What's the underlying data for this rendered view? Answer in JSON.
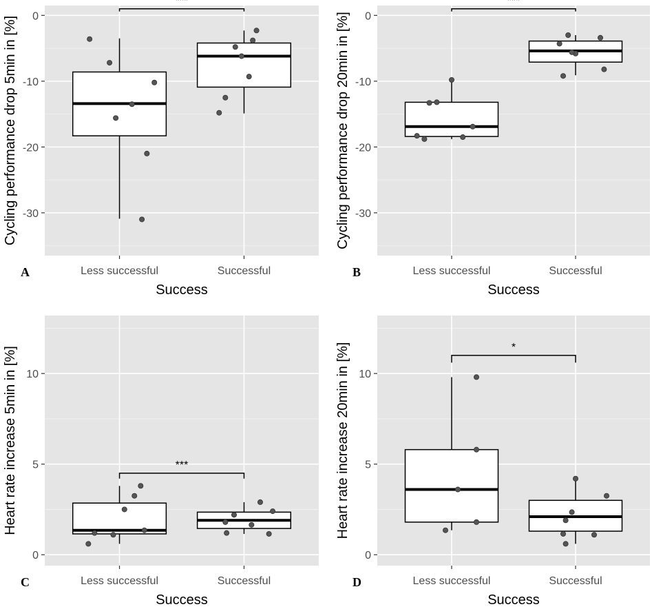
{
  "figure": {
    "colors": {
      "panel_background": "#e5e5e5",
      "grid": "#ffffff",
      "box_fill": "#ffffff",
      "point": "#555555"
    }
  },
  "chart_data": [
    {
      "type": "box",
      "panel": "A",
      "ylabel": "Cycling performance drop 5min in [%]",
      "xlabel": "Success",
      "categories": [
        "Less successful",
        "Successful"
      ],
      "ylim": [
        -36.5,
        1.5
      ],
      "yticks": [
        0,
        -10,
        -20,
        -30
      ],
      "ytick_labels": [
        "0",
        "-10",
        "-20",
        "-30"
      ],
      "boxes": [
        {
          "q1": -18.3,
          "median": -13.4,
          "q3": -8.6,
          "whisker_low": -30.9,
          "whisker_high": -3.5
        },
        {
          "q1": -10.9,
          "median": -6.2,
          "q3": -4.2,
          "whisker_low": -14.9,
          "whisker_high": -2.3
        }
      ],
      "points": [
        [
          [
            -0.24,
            -3.6
          ],
          [
            -0.08,
            -7.2
          ],
          [
            0.28,
            -10.2
          ],
          [
            0.1,
            -13.5
          ],
          [
            -0.03,
            -15.6
          ],
          [
            0.22,
            -21.0
          ],
          [
            0.18,
            -31.0
          ]
        ],
        [
          [
            0.1,
            -2.3
          ],
          [
            -0.07,
            -4.8
          ],
          [
            0.07,
            -3.8
          ],
          [
            -0.02,
            -6.2
          ],
          [
            -0.15,
            -12.5
          ],
          [
            0.04,
            -9.3
          ],
          [
            -0.2,
            -14.8
          ]
        ]
      ],
      "significance": {
        "label": "***",
        "y": 1.0,
        "drop": 0.4
      }
    },
    {
      "type": "box",
      "panel": "B",
      "ylabel": "Cycling performance drop 20min in [%]",
      "xlabel": "Success",
      "categories": [
        "Less successful",
        "Successful"
      ],
      "ylim": [
        -36.5,
        1.5
      ],
      "yticks": [
        0,
        -10,
        -20,
        -30
      ],
      "ytick_labels": [
        "0",
        "-10",
        "-20",
        "-30"
      ],
      "boxes": [
        {
          "q1": -18.4,
          "median": -16.9,
          "q3": -13.2,
          "whisker_low": -18.8,
          "whisker_high": -9.9
        },
        {
          "q1": -7.1,
          "median": -5.4,
          "q3": -3.9,
          "whisker_low": -9.1,
          "whisker_high": -3.0
        }
      ],
      "points": [
        [
          [
            0.0,
            -9.8
          ],
          [
            -0.18,
            -13.3
          ],
          [
            -0.12,
            -13.2
          ],
          [
            0.17,
            -16.9
          ],
          [
            -0.28,
            -18.3
          ],
          [
            -0.22,
            -18.8
          ],
          [
            0.09,
            -18.5
          ]
        ],
        [
          [
            -0.13,
            -4.3
          ],
          [
            -0.06,
            -3.0
          ],
          [
            0.0,
            -5.8
          ],
          [
            0.2,
            -3.4
          ],
          [
            0.23,
            -8.2
          ],
          [
            -0.03,
            -5.6
          ],
          [
            -0.1,
            -9.2
          ]
        ]
      ],
      "significance": {
        "label": "***",
        "y": 1.0,
        "drop": 0.4
      }
    },
    {
      "type": "box",
      "panel": "C",
      "ylabel": "Heart rate increase 5min in [%]",
      "xlabel": "Success",
      "categories": [
        "Less successful",
        "Successful"
      ],
      "ylim": [
        -0.6,
        13.2
      ],
      "yticks": [
        0,
        5,
        10
      ],
      "ytick_labels": [
        "0",
        "5",
        "10"
      ],
      "boxes": [
        {
          "q1": 1.15,
          "median": 1.35,
          "q3": 2.85,
          "whisker_low": 0.6,
          "whisker_high": 3.8
        },
        {
          "q1": 1.45,
          "median": 1.9,
          "q3": 2.35,
          "whisker_low": 1.15,
          "whisker_high": 2.9
        }
      ],
      "points": [
        [
          [
            0.17,
            3.8
          ],
          [
            0.12,
            3.25
          ],
          [
            0.04,
            2.5
          ],
          [
            0.2,
            1.35
          ],
          [
            -0.2,
            1.2
          ],
          [
            -0.05,
            1.1
          ],
          [
            -0.25,
            0.6
          ]
        ],
        [
          [
            0.13,
            2.9
          ],
          [
            0.23,
            2.4
          ],
          [
            -0.08,
            2.2
          ],
          [
            -0.15,
            1.8
          ],
          [
            0.06,
            1.65
          ],
          [
            -0.14,
            1.2
          ],
          [
            0.2,
            1.15
          ]
        ]
      ],
      "significance": {
        "label": "***",
        "y": 4.5,
        "drop": 0.3
      }
    },
    {
      "type": "box",
      "panel": "D",
      "ylabel": "Heart rate increase 20min in [%]",
      "xlabel": "Success",
      "categories": [
        "Less successful",
        "Successful"
      ],
      "ylim": [
        -0.6,
        13.2
      ],
      "yticks": [
        0,
        5,
        10
      ],
      "ytick_labels": [
        "0",
        "5",
        "10"
      ],
      "boxes": [
        {
          "q1": 1.8,
          "median": 3.6,
          "q3": 5.8,
          "whisker_low": 1.35,
          "whisker_high": 9.8
        },
        {
          "q1": 1.3,
          "median": 2.1,
          "q3": 3.0,
          "whisker_low": 0.6,
          "whisker_high": 4.2
        }
      ],
      "points": [
        [
          [
            0.2,
            9.8
          ],
          [
            0.2,
            5.8
          ],
          [
            0.05,
            3.6
          ],
          [
            0.2,
            1.8
          ],
          [
            -0.05,
            1.35
          ]
        ],
        [
          [
            0.0,
            4.2
          ],
          [
            0.25,
            3.25
          ],
          [
            -0.03,
            2.35
          ],
          [
            -0.08,
            1.9
          ],
          [
            -0.1,
            1.15
          ],
          [
            0.15,
            1.1
          ],
          [
            -0.08,
            0.6
          ]
        ]
      ],
      "significance": {
        "label": "*",
        "y": 11.0,
        "drop": 0.4
      }
    }
  ]
}
